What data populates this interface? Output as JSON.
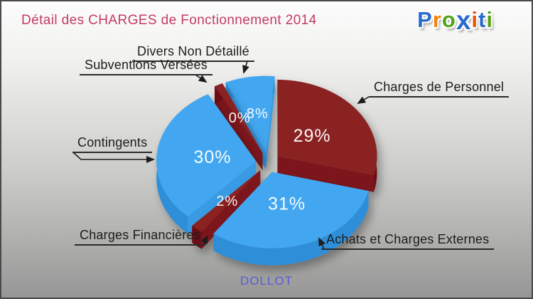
{
  "header": {
    "title": "Détail des CHARGES de Fonctionnement 2014"
  },
  "logo": {
    "text": "Proxiti",
    "letters": [
      {
        "ch": "P",
        "color": "#2a6bcc"
      },
      {
        "ch": "r",
        "color": "#f5820b"
      },
      {
        "ch": "o",
        "color": "#53a318"
      },
      {
        "ch": "x",
        "color": "#2a6bcc"
      },
      {
        "ch": "i",
        "color": "#e8520a"
      },
      {
        "ch": "t",
        "color": "#2a6bcc"
      },
      {
        "ch": "i",
        "color": "#53a318"
      }
    ]
  },
  "footer": {
    "municipality": "DOLLOT"
  },
  "chart_data": {
    "type": "pie",
    "style": "3d-exploded",
    "title": "Détail des CHARGES de Fonctionnement 2014",
    "unit": "%",
    "direction": "clockwise",
    "start_angle_deg": 0,
    "legend_position": "callout-labels",
    "slices": [
      {
        "label": "Charges de Personnel",
        "value": 29,
        "color": "#8a2124",
        "side_color": "#6d1114"
      },
      {
        "label": "Achats et Charges Externes",
        "value": 31,
        "color": "#42a7f0",
        "side_color": "#2e8ed8"
      },
      {
        "label": "Charges Financières",
        "value": 2,
        "color": "#8a2124",
        "side_color": "#6d1114"
      },
      {
        "label": "Contingents",
        "value": 30,
        "color": "#42a7f0",
        "side_color": "#2e8ed8"
      },
      {
        "label": "Subventions Versées",
        "value": 0,
        "color": "#8a2124",
        "side_color": "#6d1114"
      },
      {
        "label": "Divers Non Détaillé",
        "value": 8,
        "color": "#42a7f0",
        "side_color": "#2e8ed8"
      }
    ]
  }
}
